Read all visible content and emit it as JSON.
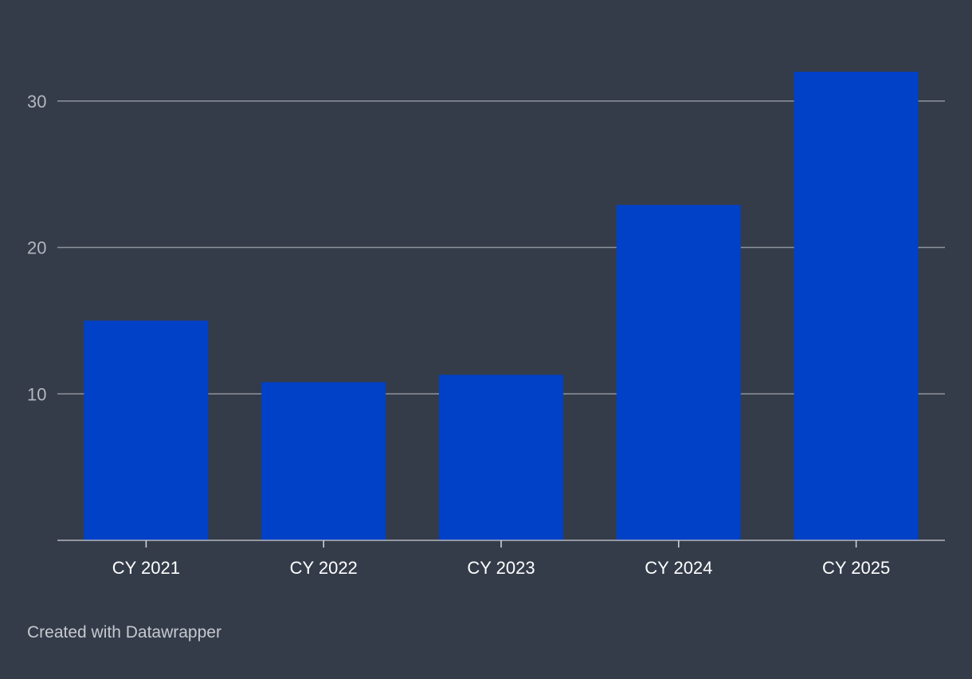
{
  "chart_data": {
    "type": "bar",
    "categories": [
      "CY 2021",
      "CY 2022",
      "CY 2023",
      "CY 2024",
      "CY 2025"
    ],
    "values": [
      15.0,
      10.8,
      11.3,
      22.9,
      32.0
    ],
    "title": "",
    "xlabel": "",
    "ylabel": "",
    "ylim": [
      0,
      32
    ],
    "yticks": [
      10,
      20,
      30
    ],
    "grid": true,
    "legend": "none",
    "bar_color": "#0041c7",
    "background_color": "#343c4a"
  },
  "footer": {
    "credit": "Created with Datawrapper"
  }
}
